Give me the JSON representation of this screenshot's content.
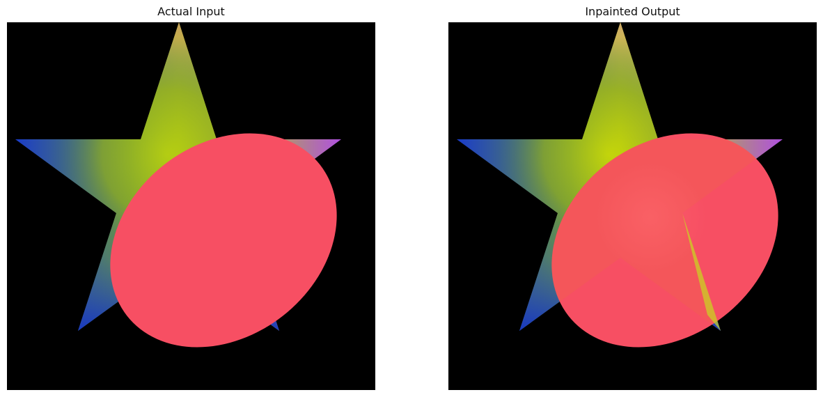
{
  "panels": [
    {
      "title": "Actual Input",
      "content": "star with gradient fill partially occluded by a solid red ellipse"
    },
    {
      "title": "Inpainted Output",
      "content": "star with gradient fill with the occluding red ellipse blended semi-transparently"
    }
  ],
  "colors": {
    "background": "#000000",
    "ellipse": "#f74f63",
    "star_top": "#c8a060",
    "star_center": "#b8d010",
    "star_left": "#1a3cc8",
    "star_right": "#b050e0",
    "star_bottom_left": "#1838c0",
    "star_bottom_right": "#c8d820"
  }
}
